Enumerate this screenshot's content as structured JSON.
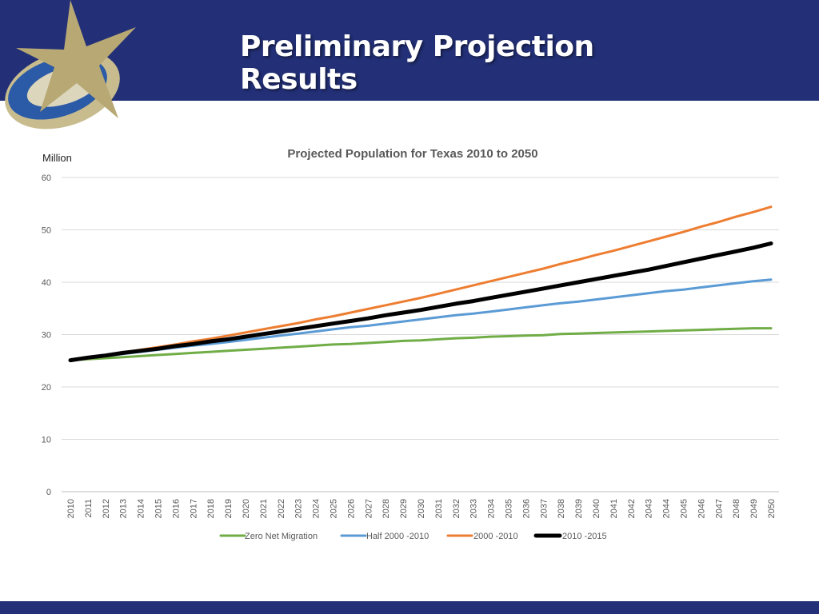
{
  "header": {
    "title": "Preliminary Projection Results"
  },
  "colors": {
    "header_bg": "#233077",
    "logo_gold": "#b8a874",
    "logo_blue": "#2b5aa6",
    "zero_net_migration": "#70ad47",
    "half_2000_2010": "#5b9bd5",
    "full_2000_2010": "#ed7d31",
    "recent_2010_2015": "#000000"
  },
  "chart_data": {
    "type": "line",
    "title": "Projected Population for Texas 2010 to 2050",
    "ylabel": "Million",
    "xlabel": "",
    "ylim": [
      0,
      60
    ],
    "yticks": [
      0,
      10,
      20,
      30,
      40,
      50,
      60
    ],
    "x": [
      2010,
      2011,
      2012,
      2013,
      2014,
      2015,
      2016,
      2017,
      2018,
      2019,
      2020,
      2021,
      2022,
      2023,
      2024,
      2025,
      2026,
      2027,
      2028,
      2029,
      2030,
      2031,
      2032,
      2033,
      2034,
      2035,
      2036,
      2037,
      2038,
      2039,
      2040,
      2041,
      2042,
      2043,
      2044,
      2045,
      2046,
      2047,
      2048,
      2049,
      2050
    ],
    "grid": "horizontal",
    "legend_position": "bottom",
    "series": [
      {
        "name": "Zero Net Migration",
        "color": "#70ad47",
        "width": 3,
        "values": [
          25.1,
          25.3,
          25.5,
          25.7,
          25.9,
          26.1,
          26.3,
          26.5,
          26.7,
          26.9,
          27.1,
          27.3,
          27.5,
          27.7,
          27.9,
          28.1,
          28.2,
          28.4,
          28.6,
          28.8,
          28.9,
          29.1,
          29.3,
          29.4,
          29.6,
          29.7,
          29.8,
          29.9,
          30.1,
          30.2,
          30.3,
          30.4,
          30.5,
          30.6,
          30.7,
          30.8,
          30.9,
          31.0,
          31.1,
          31.2,
          31.2
        ]
      },
      {
        "name": "Half 2000 -2010",
        "color": "#5b9bd5",
        "width": 3,
        "values": [
          25.1,
          25.5,
          25.9,
          26.3,
          26.7,
          27.1,
          27.5,
          27.9,
          28.2,
          28.6,
          29.0,
          29.4,
          29.8,
          30.2,
          30.6,
          31.0,
          31.4,
          31.7,
          32.1,
          32.5,
          32.9,
          33.3,
          33.7,
          34.0,
          34.4,
          34.8,
          35.2,
          35.6,
          36.0,
          36.3,
          36.7,
          37.1,
          37.5,
          37.9,
          38.3,
          38.6,
          39.0,
          39.4,
          39.8,
          40.2,
          40.5
        ]
      },
      {
        "name": "2000 -2010",
        "color": "#ed7d31",
        "width": 3,
        "values": [
          25.1,
          25.6,
          26.1,
          26.6,
          27.1,
          27.6,
          28.1,
          28.7,
          29.2,
          29.8,
          30.4,
          31.0,
          31.6,
          32.2,
          32.9,
          33.5,
          34.2,
          34.9,
          35.6,
          36.3,
          37.0,
          37.8,
          38.6,
          39.4,
          40.2,
          41.0,
          41.8,
          42.6,
          43.5,
          44.3,
          45.2,
          46.0,
          46.9,
          47.8,
          48.7,
          49.6,
          50.6,
          51.5,
          52.5,
          53.4,
          54.4
        ]
      },
      {
        "name": "2010 -2015",
        "color": "#000000",
        "width": 5,
        "values": [
          25.1,
          25.6,
          26.0,
          26.5,
          26.9,
          27.3,
          27.8,
          28.2,
          28.7,
          29.1,
          29.6,
          30.1,
          30.6,
          31.1,
          31.6,
          32.1,
          32.6,
          33.1,
          33.7,
          34.2,
          34.7,
          35.3,
          35.9,
          36.4,
          37.0,
          37.6,
          38.2,
          38.8,
          39.4,
          40.0,
          40.6,
          41.2,
          41.8,
          42.4,
          43.1,
          43.8,
          44.5,
          45.2,
          45.9,
          46.6,
          47.4
        ]
      }
    ]
  }
}
